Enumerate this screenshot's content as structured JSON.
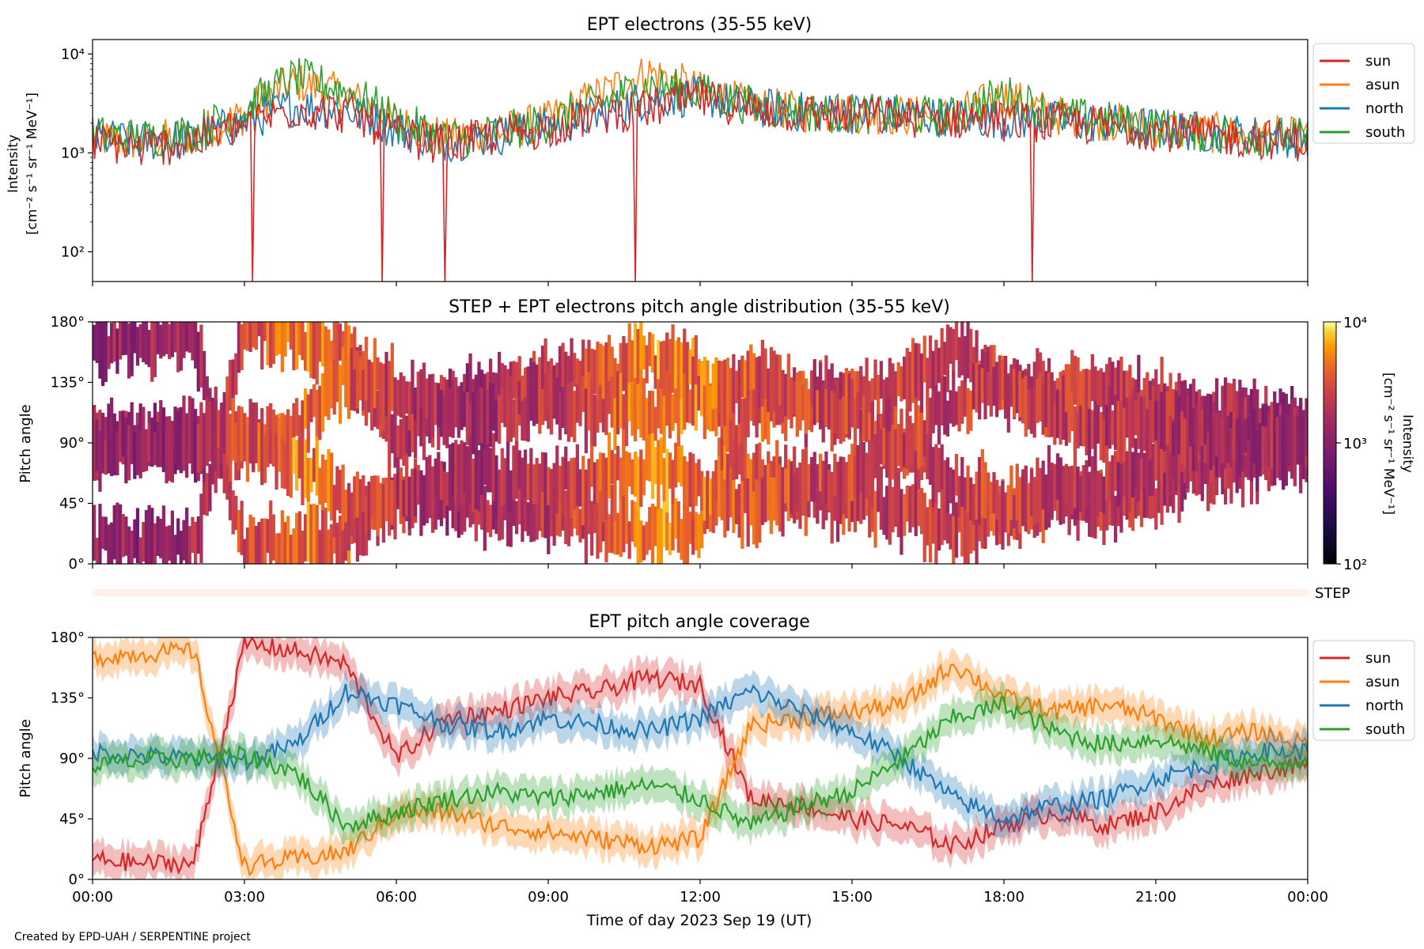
{
  "figure": {
    "footer": "Created by EPD-UAH / SERPENTINE project",
    "xlabel": "Time of day 2023 Sep 19 (UT)",
    "xticks": [
      "00:00",
      "03:00",
      "06:00",
      "09:00",
      "12:00",
      "15:00",
      "18:00",
      "21:00",
      "00:00"
    ],
    "colors": {
      "sun": "#d62728",
      "asun": "#ff7f0e",
      "north": "#1f77b4",
      "south": "#2ca02c"
    }
  },
  "chart_data": [
    {
      "type": "line",
      "title": "EPT electrons (35-55 keV)",
      "ylabel_line1": "Intensity",
      "ylabel_line2": "[cm⁻² s⁻¹ sr⁻¹ MeV⁻¹]",
      "yscale": "log",
      "ylim": [
        50,
        14000
      ],
      "yticks": [
        "10²",
        "10³",
        "10⁴"
      ],
      "x_hours": [
        0,
        1,
        2,
        3,
        4,
        5,
        6,
        7,
        8,
        9,
        10,
        11,
        12,
        13,
        14,
        15,
        16,
        17,
        18,
        19,
        20,
        21,
        22,
        23,
        24
      ],
      "series": [
        {
          "name": "sun",
          "color": "#d62728",
          "values": [
            1300,
            1100,
            1300,
            1900,
            2800,
            2500,
            1500,
            1200,
            1500,
            1800,
            2400,
            2800,
            3500,
            2800,
            2500,
            2400,
            2300,
            2200,
            2100,
            2000,
            1900,
            1700,
            1500,
            1400,
            1300
          ]
        },
        {
          "name": "asun",
          "color": "#ff7f0e",
          "values": [
            1400,
            1300,
            1500,
            2400,
            5200,
            3800,
            2000,
            1400,
            1600,
            2100,
            3800,
            6500,
            4200,
            3000,
            2600,
            2500,
            2400,
            2300,
            3700,
            2400,
            2100,
            1800,
            1600,
            1500,
            1400
          ]
        },
        {
          "name": "north",
          "color": "#1f77b4",
          "values": [
            1400,
            1300,
            1400,
            2000,
            3000,
            2700,
            1700,
            1300,
            1500,
            1800,
            2400,
            3600,
            3700,
            2900,
            2600,
            2500,
            2400,
            2300,
            2200,
            2100,
            2000,
            1800,
            1600,
            1500,
            1400
          ]
        },
        {
          "name": "south",
          "color": "#2ca02c",
          "values": [
            1500,
            1400,
            1600,
            2600,
            5800,
            4200,
            2100,
            1400,
            1600,
            2000,
            3100,
            4800,
            4100,
            3000,
            2600,
            2500,
            2400,
            2300,
            3900,
            2400,
            2100,
            1800,
            1600,
            1500,
            1400
          ]
        }
      ],
      "legend": [
        "sun",
        "asun",
        "north",
        "south"
      ],
      "legend_position": "outside-upper-right"
    },
    {
      "type": "heatmap",
      "title": "STEP + EPT electrons pitch angle distribution (35-55 keV)",
      "ylabel": "Pitch angle",
      "yticks": [
        "0°",
        "45°",
        "90°",
        "135°",
        "180°"
      ],
      "ylim": [
        0,
        180
      ],
      "colorbar": {
        "label_line1": "Intensity",
        "label_line2": "[cm⁻² s⁻¹ sr⁻¹ MeV⁻¹]",
        "ticks": [
          "10²",
          "10³",
          "10⁴"
        ],
        "range": [
          100,
          10000
        ],
        "scale": "log",
        "colormap": "inferno"
      },
      "x_hours": [
        0,
        1,
        2,
        3,
        4,
        5,
        6,
        7,
        8,
        9,
        10,
        11,
        12,
        13,
        14,
        15,
        16,
        17,
        18,
        19,
        20,
        21,
        22,
        23,
        24
      ],
      "mean_intensity": [
        1300,
        1200,
        1400,
        2600,
        4500,
        3500,
        2000,
        1500,
        1700,
        2000,
        3000,
        4800,
        4000,
        3000,
        2600,
        2500,
        2400,
        2300,
        2600,
        2200,
        2000,
        1800,
        1600,
        1500,
        1400
      ],
      "step_label": "STEP"
    },
    {
      "type": "line",
      "title": "EPT pitch angle coverage",
      "ylabel": "Pitch angle",
      "ylim": [
        0,
        180
      ],
      "yticks": [
        "0°",
        "45°",
        "90°",
        "135°",
        "180°"
      ],
      "x_hours": [
        0,
        1,
        2,
        3,
        4,
        5,
        6,
        7,
        8,
        9,
        10,
        11,
        12,
        13,
        14,
        15,
        16,
        17,
        18,
        19,
        20,
        21,
        22,
        23,
        24
      ],
      "series": [
        {
          "name": "sun",
          "color": "#d62728",
          "values": [
            15,
            12,
            12,
            175,
            170,
            160,
            90,
            120,
            125,
            135,
            140,
            150,
            145,
            60,
            55,
            45,
            40,
            25,
            40,
            50,
            40,
            50,
            70,
            80,
            85
          ]
        },
        {
          "name": "asun",
          "color": "#ff7f0e",
          "values": [
            165,
            168,
            170,
            10,
            15,
            20,
            50,
            50,
            40,
            35,
            30,
            25,
            30,
            115,
            120,
            125,
            130,
            160,
            135,
            125,
            130,
            120,
            105,
            110,
            100
          ]
        },
        {
          "name": "north",
          "color": "#1f77b4",
          "values": [
            95,
            92,
            90,
            88,
            100,
            140,
            130,
            115,
            110,
            120,
            115,
            110,
            120,
            140,
            125,
            110,
            90,
            60,
            45,
            55,
            60,
            75,
            85,
            95,
            95
          ]
        },
        {
          "name": "south",
          "color": "#2ca02c",
          "values": [
            85,
            88,
            90,
            92,
            80,
            40,
            50,
            60,
            65,
            60,
            65,
            70,
            60,
            40,
            55,
            65,
            90,
            120,
            130,
            110,
            100,
            105,
            95,
            85,
            90
          ]
        }
      ],
      "band_halfwidth_deg": 12,
      "legend": [
        "sun",
        "asun",
        "north",
        "south"
      ],
      "legend_position": "outside-upper-right"
    }
  ]
}
